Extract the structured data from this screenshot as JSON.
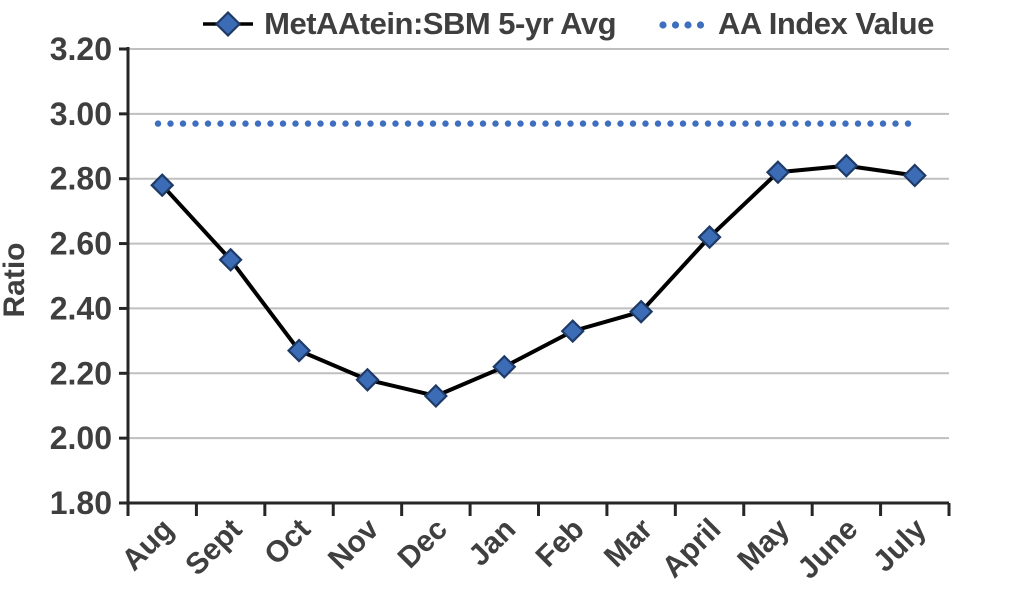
{
  "chart_data": {
    "type": "line",
    "title": "",
    "xlabel": "",
    "ylabel": "Ratio",
    "categories": [
      "Aug",
      "Sept",
      "Oct",
      "Nov",
      "Dec",
      "Jan",
      "Feb",
      "Mar",
      "April",
      "May",
      "June",
      "July"
    ],
    "series": [
      {
        "name": "MetAAtein:SBM 5-yr Avg",
        "type": "line",
        "values": [
          2.78,
          2.55,
          2.27,
          2.18,
          2.13,
          2.22,
          2.33,
          2.39,
          2.62,
          2.82,
          2.84,
          2.81
        ],
        "line_style": "solid",
        "line_color": "#000000",
        "marker": "diamond",
        "marker_fill": "#3B6CB5",
        "marker_border": "#1E3A66"
      },
      {
        "name": "AA Index Value",
        "type": "horizontal-line",
        "value": 2.97,
        "line_style": "dotted",
        "color": "#3E6FBF"
      }
    ],
    "ylim": [
      1.8,
      3.2
    ],
    "ytick_step": 0.2,
    "ytick_labels": [
      "1.80",
      "2.00",
      "2.20",
      "2.40",
      "2.60",
      "2.80",
      "3.00",
      "3.20"
    ],
    "grid": true,
    "legend_position": "top",
    "colors": {
      "axis": "#262626",
      "gridline": "#BFBFBF",
      "text": "#3F3F3F"
    }
  }
}
